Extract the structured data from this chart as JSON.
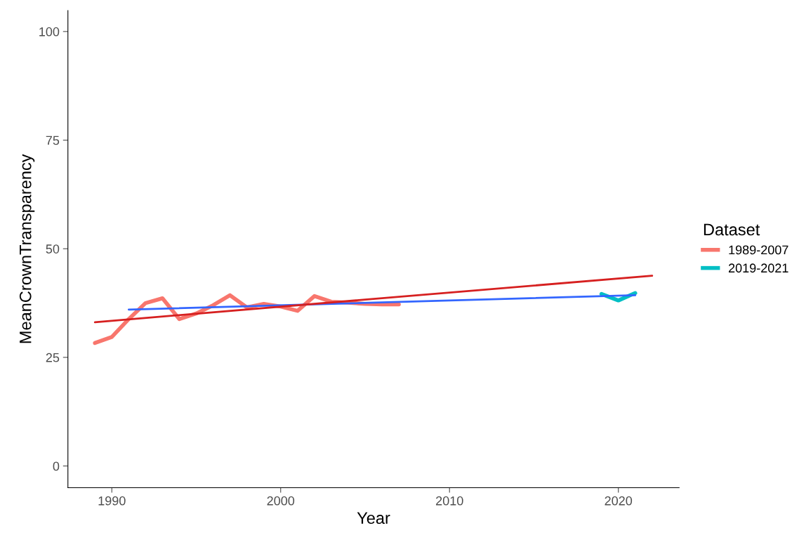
{
  "chart_data": {
    "type": "line",
    "xlabel": "Year",
    "ylabel": "MeanCrownTransparency",
    "legend_title": "Dataset",
    "legend": "right",
    "grid": false,
    "xlim": [
      1987.4,
      2023.6
    ],
    "xticks": [
      1990,
      2000,
      2010,
      2020
    ],
    "ylim": [
      -5,
      104.8
    ],
    "yticks": [
      0,
      25,
      50,
      75,
      100
    ],
    "series": [
      {
        "name": "1989-2007",
        "color": "#f8766d",
        "x": [
          1989,
          1990,
          1991,
          1992,
          1993,
          1994,
          1995,
          1996,
          1997,
          1998,
          1999,
          2000,
          2001,
          2002,
          2003,
          2004,
          2005,
          2006,
          2007
        ],
        "values": [
          28.3,
          29.7,
          33.8,
          37.5,
          38.6,
          33.8,
          35.1,
          37.0,
          39.3,
          36.5,
          37.3,
          36.7,
          35.7,
          39.1,
          37.8,
          37.6,
          37.3,
          37.2,
          37.2
        ]
      },
      {
        "name": "2019-2021",
        "color": "#00bfc4",
        "x": [
          2019,
          2020,
          2021
        ],
        "values": [
          39.6,
          38.1,
          39.8
        ]
      },
      {
        "color": "#3366ff",
        "x": [
          1991,
          2021
        ],
        "values": [
          36.0,
          39.3
        ]
      },
      {
        "color": "#d62020",
        "x": [
          1989,
          2022
        ],
        "values": [
          33.1,
          43.8
        ]
      }
    ]
  }
}
